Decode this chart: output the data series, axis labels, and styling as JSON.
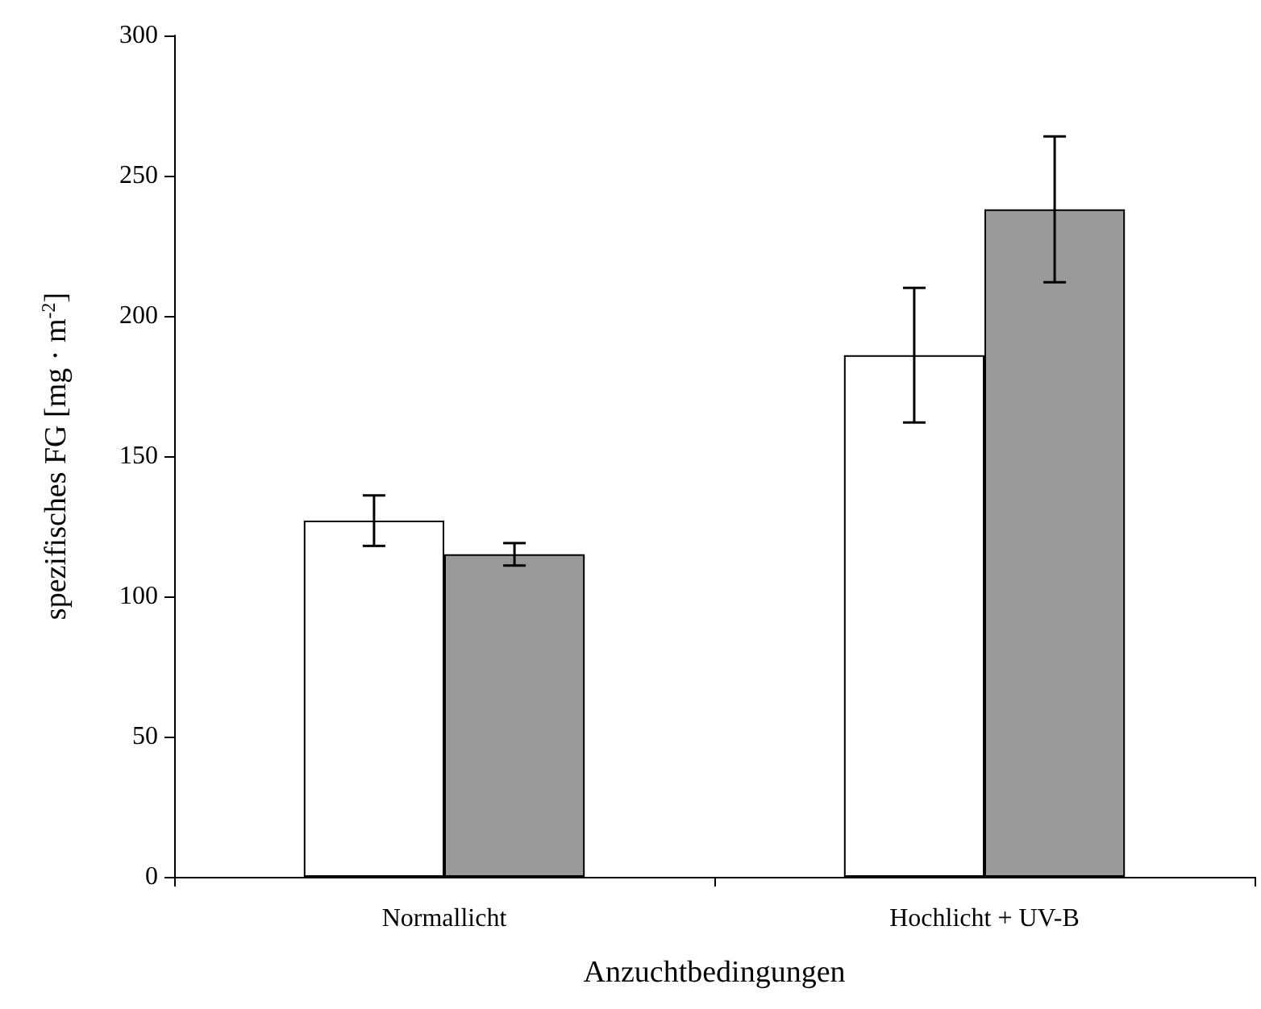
{
  "chart_data": {
    "type": "bar",
    "xlabel": "Anzuchtbedingungen",
    "ylabel": "spezifisches FG [mg · m$^{-2}$]",
    "categories": [
      "Normallicht",
      "Hochlicht + UV-B"
    ],
    "series": [
      {
        "color": "#ffffff",
        "values": [
          127,
          186
        ],
        "errors": [
          [
            118,
            136
          ],
          [
            162,
            210
          ]
        ]
      },
      {
        "color": "#999999",
        "values": [
          115,
          238
        ],
        "errors": [
          [
            111,
            119
          ],
          [
            212,
            264
          ]
        ]
      }
    ],
    "ylim": [
      0,
      300
    ],
    "yticks": [
      0,
      50,
      100,
      150,
      200,
      250,
      300
    ],
    "grid": false
  }
}
